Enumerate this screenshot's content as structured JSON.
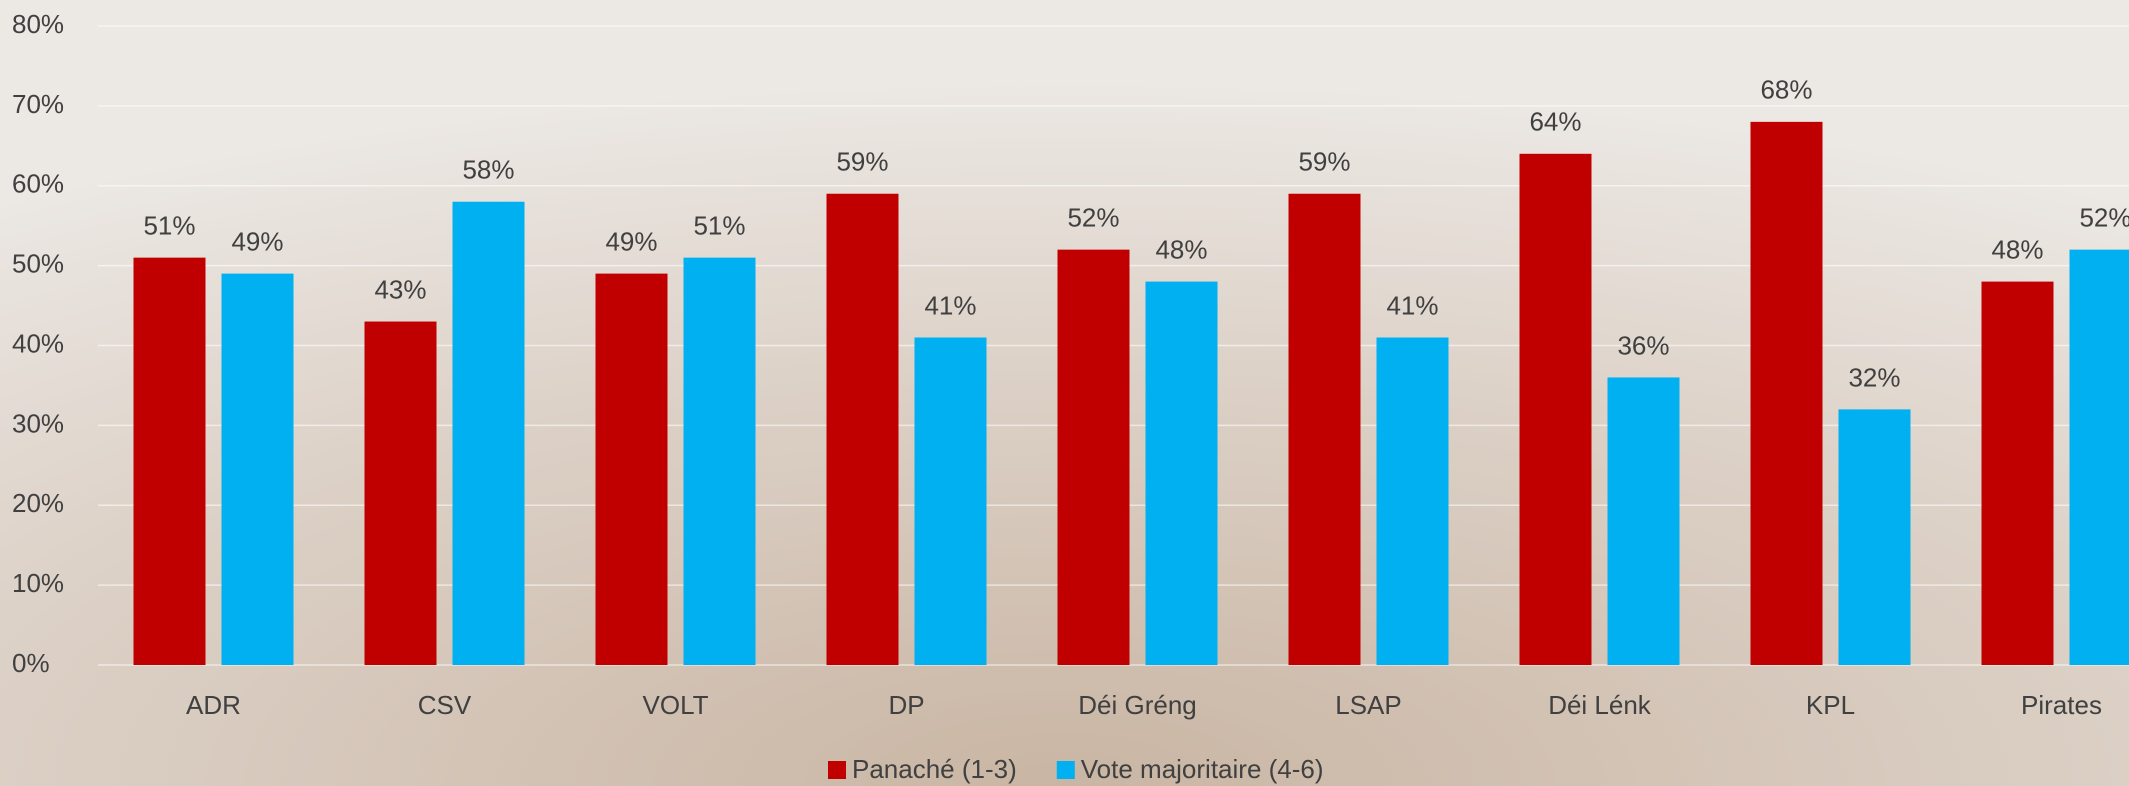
{
  "chart_data": {
    "type": "bar",
    "categories": [
      "ADR",
      "CSV",
      "VOLT",
      "DP",
      "Déi Gréng",
      "LSAP",
      "Déi Lénk",
      "KPL",
      "Pirates"
    ],
    "series": [
      {
        "name": "Panaché (1-3)",
        "color": "#c00000",
        "values": [
          51,
          43,
          49,
          59,
          52,
          59,
          64,
          68,
          48
        ],
        "value_labels": [
          "51%",
          "43%",
          "49%",
          "59%",
          "52%",
          "59%",
          "64%",
          "68%",
          "48%"
        ]
      },
      {
        "name": "Vote majoritaire (4-6)",
        "color": "#00b0f0",
        "values": [
          49,
          58,
          51,
          41,
          48,
          41,
          36,
          32,
          52
        ],
        "value_labels": [
          "49%",
          "58%",
          "51%",
          "41%",
          "48%",
          "41%",
          "36%",
          "32%",
          "52%"
        ]
      }
    ],
    "ylim": [
      0,
      80
    ],
    "yticks": [
      {
        "value": 0,
        "label": "0%"
      },
      {
        "value": 10,
        "label": "10%"
      },
      {
        "value": 20,
        "label": "20%"
      },
      {
        "value": 30,
        "label": "30%"
      },
      {
        "value": 40,
        "label": "40%"
      },
      {
        "value": 50,
        "label": "50%"
      },
      {
        "value": 60,
        "label": "60%"
      },
      {
        "value": 70,
        "label": "70%"
      },
      {
        "value": 80,
        "label": "80%"
      }
    ],
    "grid": true,
    "legend": "bottom"
  }
}
